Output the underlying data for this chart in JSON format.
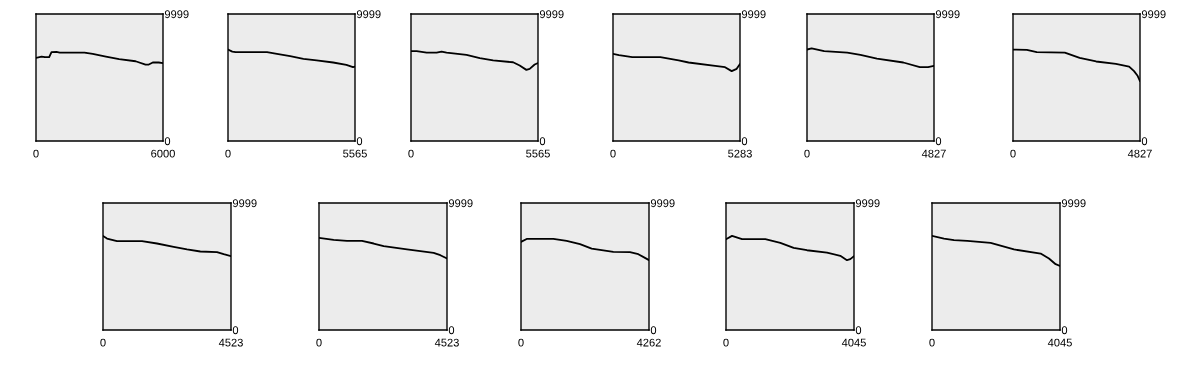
{
  "chart_data": [
    {
      "type": "line",
      "color": "#000000",
      "xlim": [
        0,
        6000
      ],
      "xticks": [
        0,
        6000
      ],
      "ylim": [
        0,
        9999
      ],
      "yticks": [
        0,
        9999
      ],
      "x": [
        0,
        265,
        421,
        623,
        732,
        966,
        1122,
        2290,
        2680,
        3303,
        3927,
        4706,
        5174,
        5330,
        5517,
        5797,
        6000
      ],
      "values": [
        6550,
        6650,
        6600,
        6600,
        6990,
        7020,
        6960,
        6960,
        6860,
        6650,
        6440,
        6280,
        6020,
        6020,
        6180,
        6180,
        6130
      ]
    },
    {
      "type": "line",
      "color": "#000000",
      "xlim": [
        0,
        5565
      ],
      "xticks": [
        0,
        5565
      ],
      "ylim": [
        0,
        9999
      ],
      "yticks": [
        0,
        9999
      ],
      "x": [
        0,
        188,
        333,
        1710,
        2145,
        2724,
        3304,
        3884,
        4608,
        5188,
        5478,
        5565
      ],
      "values": [
        7200,
        7040,
        6990,
        6990,
        6860,
        6680,
        6470,
        6340,
        6180,
        6000,
        5810,
        5860
      ]
    },
    {
      "type": "line",
      "color": "#000000",
      "xlim": [
        0,
        5565
      ],
      "xticks": [
        0,
        5565
      ],
      "ylim": [
        0,
        9999
      ],
      "yticks": [
        0,
        9999
      ],
      "x": [
        0,
        248,
        685,
        1122,
        1340,
        1559,
        2433,
        3015,
        3598,
        4472,
        4763,
        5055,
        5200,
        5419,
        5565
      ],
      "values": [
        7070,
        7070,
        6960,
        6960,
        7040,
        6960,
        6780,
        6520,
        6340,
        6200,
        5940,
        5600,
        5680,
        6020,
        6130
      ]
    },
    {
      "type": "line",
      "color": "#000000",
      "xlim": [
        0,
        5283
      ],
      "xticks": [
        0,
        5283
      ],
      "ylim": [
        0,
        9999
      ],
      "yticks": [
        0,
        9999
      ],
      "x": [
        0,
        248,
        800,
        1972,
        2731,
        3144,
        4248,
        4661,
        4937,
        5144,
        5283
      ],
      "values": [
        6860,
        6760,
        6600,
        6600,
        6340,
        6180,
        5920,
        5810,
        5500,
        5680,
        6070
      ]
    },
    {
      "type": "line",
      "color": "#000000",
      "xlim": [
        0,
        4827
      ],
      "xticks": [
        0,
        4827
      ],
      "ylim": [
        0,
        9999
      ],
      "yticks": [
        0,
        9999
      ],
      "x": [
        0,
        176,
        652,
        1530,
        2031,
        2658,
        3661,
        4288,
        4601,
        4827
      ],
      "values": [
        7200,
        7300,
        7070,
        6960,
        6780,
        6490,
        6180,
        5810,
        5810,
        5920
      ]
    },
    {
      "type": "line",
      "color": "#000000",
      "xlim": [
        0,
        4827
      ],
      "xticks": [
        0,
        4827
      ],
      "ylim": [
        0,
        9999
      ],
      "yticks": [
        0,
        9999
      ],
      "x": [
        0,
        527,
        903,
        1969,
        2533,
        3160,
        3912,
        4414,
        4601,
        4727,
        4827
      ],
      "values": [
        7200,
        7170,
        6990,
        6960,
        6550,
        6260,
        6070,
        5860,
        5500,
        5160,
        4710
      ]
    },
    {
      "type": "line",
      "color": "#000000",
      "xlim": [
        0,
        4523
      ],
      "xticks": [
        0,
        4523
      ],
      "ylim": [
        0,
        9999
      ],
      "yticks": [
        0,
        9999
      ],
      "x": [
        0,
        141,
        495,
        1378,
        1908,
        2497,
        2968,
        3439,
        4028,
        4264,
        4523
      ],
      "values": [
        7410,
        7200,
        6990,
        6990,
        6810,
        6550,
        6340,
        6180,
        6130,
        5970,
        5810
      ]
    },
    {
      "type": "line",
      "color": "#000000",
      "xlim": [
        0,
        4523
      ],
      "xticks": [
        0,
        4523
      ],
      "ylim": [
        0,
        9999
      ],
      "yticks": [
        0,
        9999
      ],
      "x": [
        0,
        518,
        990,
        1520,
        1932,
        2285,
        3109,
        4052,
        4288,
        4523
      ],
      "values": [
        7250,
        7100,
        7020,
        7020,
        6810,
        6600,
        6340,
        6070,
        5890,
        5630
      ]
    },
    {
      "type": "line",
      "color": "#000000",
      "xlim": [
        0,
        4262
      ],
      "xticks": [
        0,
        4262
      ],
      "ylim": [
        0,
        9999
      ],
      "yticks": [
        0,
        9999
      ],
      "x": [
        0,
        189,
        1077,
        1521,
        1965,
        2353,
        2630,
        3074,
        3629,
        3907,
        4262
      ],
      "values": [
        6940,
        7170,
        7170,
        7020,
        6760,
        6410,
        6310,
        6150,
        6130,
        5970,
        5500
      ]
    },
    {
      "type": "line",
      "color": "#000000",
      "xlim": [
        0,
        4045
      ],
      "xticks": [
        0,
        4045
      ],
      "ylim": [
        0,
        9999
      ],
      "yticks": [
        0,
        9999
      ],
      "x": [
        0,
        190,
        506,
        1243,
        1717,
        2138,
        2559,
        3191,
        3612,
        3823,
        3928,
        4045
      ],
      "values": [
        7150,
        7410,
        7150,
        7150,
        6860,
        6470,
        6280,
        6100,
        5840,
        5500,
        5580,
        5810
      ]
    },
    {
      "type": "line",
      "color": "#000000",
      "xlim": [
        0,
        4045
      ],
      "xticks": [
        0,
        4045
      ],
      "ylim": [
        0,
        9999
      ],
      "yticks": [
        0,
        9999
      ],
      "x": [
        0,
        379,
        695,
        1116,
        1853,
        2590,
        3433,
        3696,
        3907,
        4045
      ],
      "values": [
        7410,
        7200,
        7070,
        7020,
        6860,
        6340,
        6020,
        5630,
        5180,
        5050
      ]
    }
  ]
}
